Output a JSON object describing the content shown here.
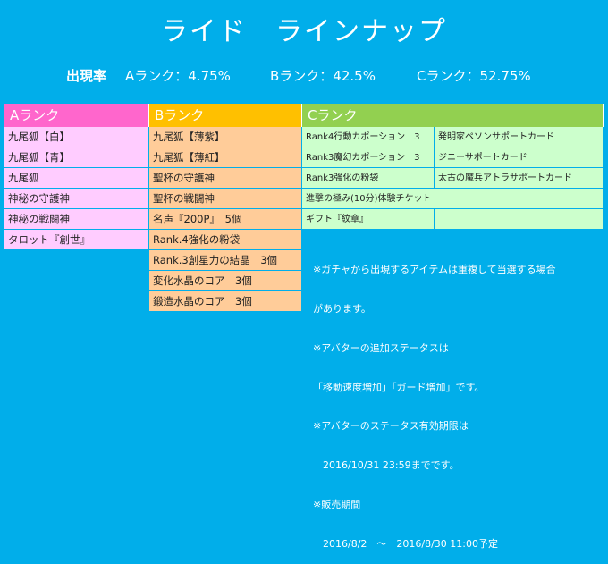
{
  "title": "ライド　ラインナップ",
  "rates": {
    "label": "出現率",
    "a": "Aランク：4.75%",
    "b": "Bランク：42.5%",
    "c": "Cランク：52.75%"
  },
  "columns": {
    "a": {
      "header": "Aランク",
      "items": [
        "九尾狐【白】",
        "九尾狐【青】",
        "九尾狐",
        "神秘の守護神",
        "神秘の戦闘神",
        "タロット『創世』"
      ]
    },
    "b": {
      "header": "Bランク",
      "items": [
        "九尾狐【薄紫】",
        "九尾狐【薄紅】",
        "聖杯の守護神",
        "聖杯の戦闘神",
        "名声『200P』　5個",
        "Rank.4強化の粉袋",
        "Rank.3創星力の結晶　3個",
        "変化水晶のコア　3個",
        "鍛造水晶のコア　3個"
      ]
    },
    "c": {
      "header": "Cランク",
      "rows": [
        [
          "Rank4行動カポーション　3",
          "発明家ペソンサポートカード"
        ],
        [
          "Rank3魔幻カポーション　3",
          "ジニーサポートカード"
        ],
        [
          "Rank3強化の粉袋",
          "太古の魔兵アトラサポートカード"
        ],
        [
          "進撃の極み(10分)体験チケット"
        ],
        [
          "ギフト『紋章』",
          ""
        ]
      ]
    }
  },
  "notes": [
    "※ガチャから出現するアイテムは重複して当選する場合",
    "があります。",
    "※アバターの追加ステータスは",
    "「移動速度増加」「ガード増加」です。",
    "※アバターのステータス有効期限は",
    "　2016/10/31 23:59までです。",
    "※販売期間",
    "　2016/8/2　～　2016/8/30 11:00予定"
  ]
}
